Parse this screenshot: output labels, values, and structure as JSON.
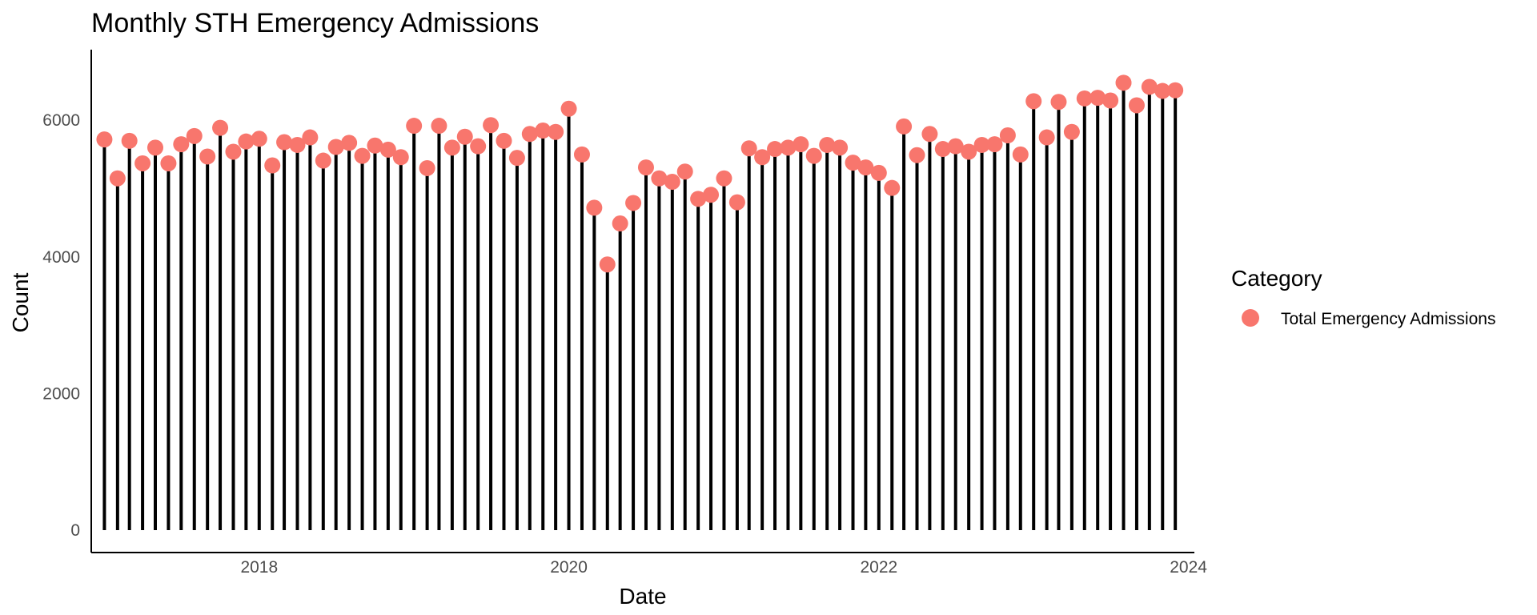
{
  "chart_data": {
    "type": "lollipop",
    "title": "Monthly STH Emergency Admissions",
    "xlabel": "Date",
    "ylabel": "Count",
    "xlim": [
      "2016-12-01",
      "2024-01-15"
    ],
    "ylim": [
      0,
      6800
    ],
    "x_ticks": [
      {
        "date": "2018-01-01",
        "label": "2018"
      },
      {
        "date": "2020-01-01",
        "label": "2020"
      },
      {
        "date": "2022-01-01",
        "label": "2022"
      },
      {
        "date": "2024-01-01",
        "label": "2024"
      }
    ],
    "y_ticks": [
      0,
      2000,
      4000,
      6000
    ],
    "grid": false,
    "legend": {
      "title": "Category",
      "placement": "right"
    },
    "colors": {
      "point": "#F8766D",
      "stem": "#000000"
    },
    "series": [
      {
        "name": "Total Emergency Admissions",
        "dates": [
          "2017-01",
          "2017-02",
          "2017-03",
          "2017-04",
          "2017-05",
          "2017-06",
          "2017-07",
          "2017-08",
          "2017-09",
          "2017-10",
          "2017-11",
          "2017-12",
          "2018-01",
          "2018-02",
          "2018-03",
          "2018-04",
          "2018-05",
          "2018-06",
          "2018-07",
          "2018-08",
          "2018-09",
          "2018-10",
          "2018-11",
          "2018-12",
          "2019-01",
          "2019-02",
          "2019-03",
          "2019-04",
          "2019-05",
          "2019-06",
          "2019-07",
          "2019-08",
          "2019-09",
          "2019-10",
          "2019-11",
          "2019-12",
          "2020-01",
          "2020-02",
          "2020-03",
          "2020-04",
          "2020-05",
          "2020-06",
          "2020-07",
          "2020-08",
          "2020-09",
          "2020-10",
          "2020-11",
          "2020-12",
          "2021-01",
          "2021-02",
          "2021-03",
          "2021-04",
          "2021-05",
          "2021-06",
          "2021-07",
          "2021-08",
          "2021-09",
          "2021-10",
          "2021-11",
          "2021-12",
          "2022-01",
          "2022-02",
          "2022-03",
          "2022-04",
          "2022-05",
          "2022-06",
          "2022-07",
          "2022-08",
          "2022-09",
          "2022-10",
          "2022-11",
          "2022-12",
          "2023-01",
          "2023-02",
          "2023-03",
          "2023-04",
          "2023-05",
          "2023-06",
          "2023-07",
          "2023-08",
          "2023-09",
          "2023-10",
          "2023-11",
          "2023-12"
        ],
        "values": [
          5720,
          5150,
          5700,
          5370,
          5600,
          5370,
          5650,
          5770,
          5470,
          5890,
          5540,
          5690,
          5730,
          5340,
          5680,
          5640,
          5750,
          5410,
          5610,
          5670,
          5480,
          5630,
          5570,
          5460,
          5920,
          5300,
          5920,
          5600,
          5760,
          5620,
          5930,
          5700,
          5450,
          5800,
          5850,
          5830,
          6170,
          5500,
          4720,
          3890,
          4490,
          4790,
          5310,
          5150,
          5100,
          5250,
          4850,
          4910,
          5150,
          4800,
          5590,
          5460,
          5580,
          5600,
          5650,
          5480,
          5640,
          5600,
          5380,
          5310,
          5230,
          5010,
          5910,
          5490,
          5800,
          5580,
          5620,
          5540,
          5640,
          5650,
          5780,
          5500,
          6280,
          5750,
          6270,
          5830,
          6320,
          6330,
          6290,
          6550,
          6220,
          6490,
          6430,
          6440
        ]
      }
    ]
  }
}
